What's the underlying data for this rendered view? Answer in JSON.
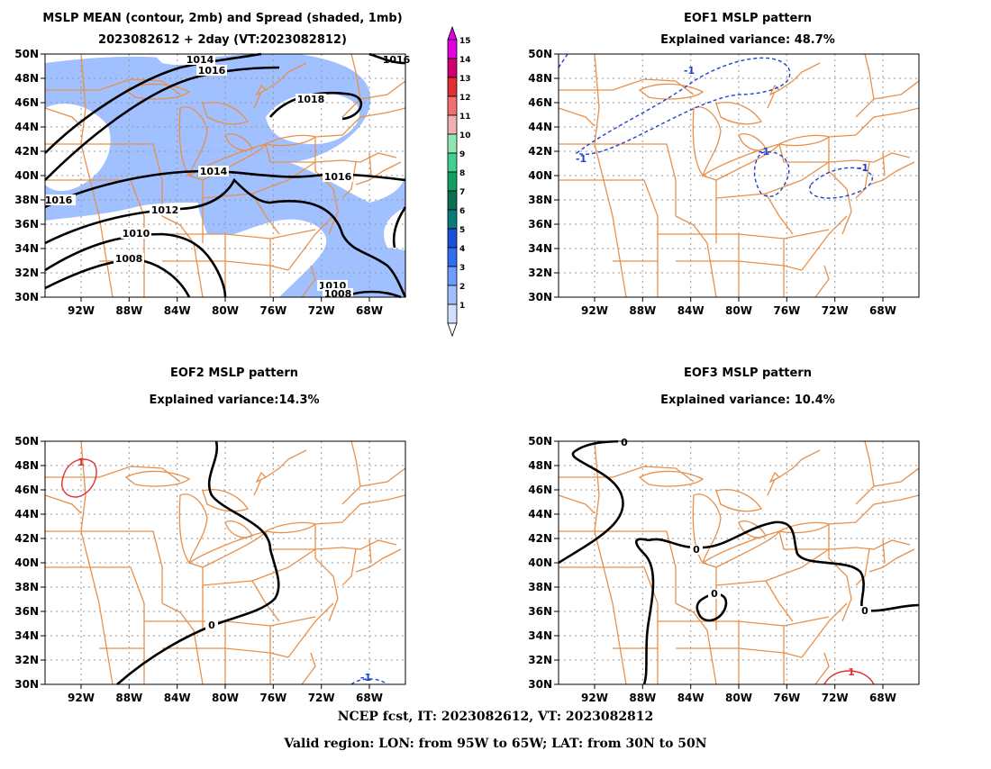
{
  "panels": [
    {
      "title1": "MSLP MEAN (contour, 2mb) and Spread (shaded, 1mb)",
      "title2": "2023082612 + 2day (VT:2023082812)"
    },
    {
      "title1": "EOF1 MSLP pattern",
      "title2": "Explained variance: 48.7%"
    },
    {
      "title1": "EOF2 MSLP pattern",
      "title2": "Explained variance:14.3%"
    },
    {
      "title1": "EOF3 MSLP pattern",
      "title2": "Explained variance: 10.4%"
    }
  ],
  "lat_labels": [
    "50N",
    "48N",
    "46N",
    "44N",
    "42N",
    "40N",
    "38N",
    "36N",
    "34N",
    "32N",
    "30N"
  ],
  "lon_labels": [
    "92W",
    "88W",
    "84W",
    "80W",
    "76W",
    "72W",
    "68W"
  ],
  "colorbar": {
    "labels": [
      "1",
      "2",
      "3",
      "4",
      "5",
      "6",
      "7",
      "8",
      "9",
      "10",
      "11",
      "12",
      "13",
      "14",
      "15"
    ],
    "colors": [
      "#cfe0ff",
      "#a0c0ff",
      "#6e9cff",
      "#2e6ef0",
      "#1a4fd6",
      "#0a7a7a",
      "#087050",
      "#10a060",
      "#40d090",
      "#90e8b0",
      "#f0b0b0",
      "#f07070",
      "#e03030",
      "#d00070",
      "#e000e0"
    ]
  },
  "contours_mean": [
    "1014",
    "1016",
    "1018",
    "1014",
    "1016",
    "1016",
    "1012",
    "1010",
    "1008",
    "1010",
    "1008",
    "1016"
  ],
  "eof1_labels": [
    "-1",
    "-1",
    "-1",
    "-1"
  ],
  "eof2_labels": [
    "1",
    "0",
    "-1"
  ],
  "eof3_labels": [
    "0",
    "0",
    "0",
    "0",
    "1"
  ],
  "footer": {
    "line1": "NCEP fcst, IT: 2023082612, VT: 2023082812",
    "line2": "Valid region: LON: from 95W to 65W; LAT: from 30N to 50N"
  },
  "colors": {
    "map": "#e8904a",
    "grid": "#999999",
    "spread": "#a0c0ff",
    "neg": "#1f3fd0",
    "pos": "#e03030"
  }
}
